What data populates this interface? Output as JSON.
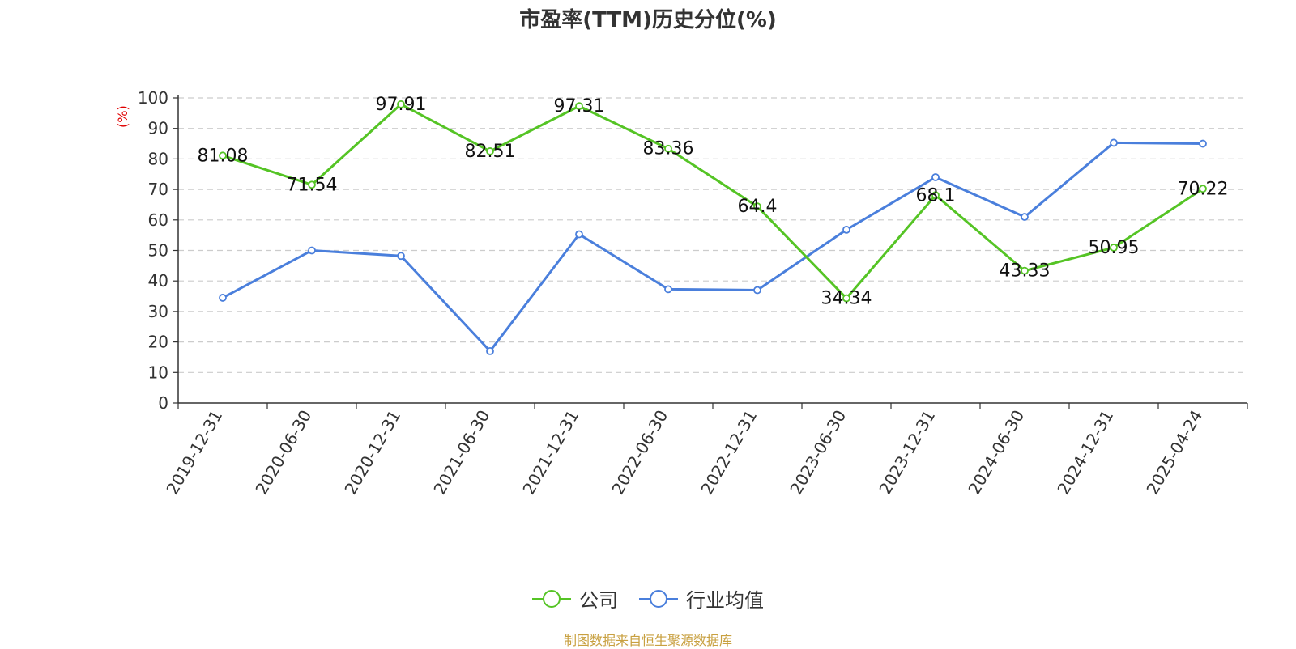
{
  "chart_data": {
    "type": "line",
    "title": "市盈率(TTM)历史分位(%)",
    "xlabel": "",
    "ylabel": "(%)",
    "ylim": [
      0,
      100
    ],
    "yticks": [
      0,
      10,
      20,
      30,
      40,
      50,
      60,
      70,
      80,
      90,
      100
    ],
    "grid": "horizontal dashed",
    "legend_position": "bottom-center",
    "categories": [
      "2019-12-31",
      "2020-06-30",
      "2020-12-31",
      "2021-06-30",
      "2021-12-31",
      "2022-06-30",
      "2022-12-31",
      "2023-06-30",
      "2023-12-31",
      "2024-06-30",
      "2024-12-31",
      "2025-04-24"
    ],
    "series": [
      {
        "name": "公司",
        "color": "#55c425",
        "values": [
          81.08,
          71.54,
          97.91,
          82.51,
          97.31,
          83.36,
          64.4,
          34.34,
          68.1,
          43.33,
          50.95,
          70.22
        ],
        "labels": [
          "81.08",
          "71.54",
          "97.91",
          "82.51",
          "97.31",
          "83.36",
          "64.4",
          "34.34",
          "68.1",
          "43.33",
          "50.95",
          "70.22"
        ]
      },
      {
        "name": "行业均值",
        "color": "#4a7fdc",
        "values": [
          34.5,
          50.0,
          48.2,
          17.0,
          55.3,
          37.3,
          37.0,
          56.8,
          74.0,
          61.0,
          85.3,
          85.0
        ]
      }
    ],
    "source": "制图数据来自恒生聚源数据库"
  }
}
